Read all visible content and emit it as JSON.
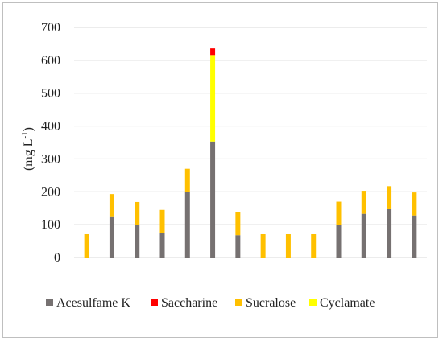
{
  "chart_data": {
    "type": "bar",
    "stacked": true,
    "title": "",
    "xlabel": "",
    "ylabel": "(mg L⁻¹)",
    "ylabel_main": "(mg L",
    "ylabel_sup": "-1",
    "ylabel_close": ")",
    "ylim": [
      0,
      700
    ],
    "yticks": [
      0,
      100,
      200,
      300,
      400,
      500,
      600,
      700
    ],
    "grid": true,
    "legend_position": "bottom",
    "categories": [
      "",
      "",
      "",
      "",
      "",
      "",
      "",
      "",
      "",
      "",
      "",
      "",
      "",
      ""
    ],
    "series": [
      {
        "name": "Acesulfame K",
        "color": "#767171",
        "values": [
          0,
          123,
          99,
          75,
          200,
          353,
          68,
          0,
          0,
          0,
          100,
          133,
          147,
          128
        ]
      },
      {
        "name": "Saccharine",
        "color": "#ff0000",
        "values": [
          0,
          0,
          0,
          0,
          0,
          20,
          0,
          0,
          0,
          0,
          0,
          0,
          0,
          0
        ]
      },
      {
        "name": "Sucralose",
        "color": "#ffc000",
        "values": [
          71,
          70,
          70,
          70,
          70,
          0,
          70,
          71,
          71,
          71,
          70,
          70,
          70,
          70
        ]
      },
      {
        "name": "Cyclamate",
        "color": "#ffff00",
        "values": [
          0,
          0,
          0,
          0,
          0,
          263,
          0,
          0,
          0,
          0,
          0,
          0,
          0,
          0
        ]
      }
    ],
    "stack_order": [
      "Acesulfame K",
      "Sucralose",
      "Cyclamate",
      "Saccharine"
    ]
  }
}
